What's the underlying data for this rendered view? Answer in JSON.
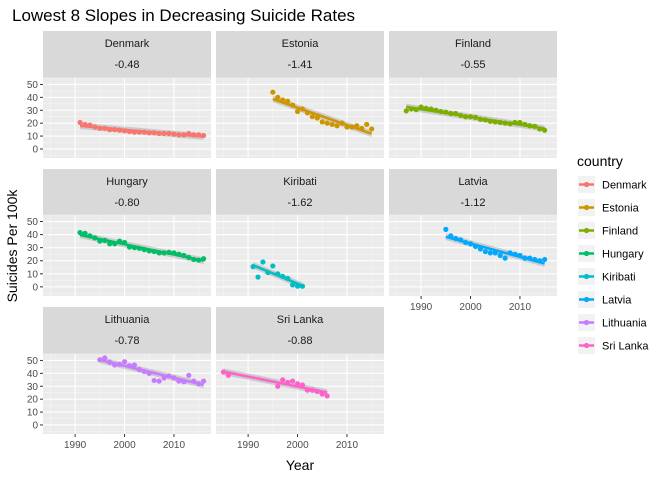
{
  "title": "Lowest 8 Slopes in Decreasing Suicide Rates",
  "chart_data": {
    "type": "scatter",
    "title": "Lowest 8 Slopes in Decreasing Suicide Rates",
    "xlabel": "Year",
    "ylabel": "Suicides Per 100k",
    "xlim": [
      1983.5,
      2017.5
    ],
    "ylim": [
      -7,
      55
    ],
    "xticks": [
      1990,
      2000,
      2010
    ],
    "yticks": [
      0,
      10,
      20,
      30,
      40,
      50
    ],
    "grid": true,
    "legend": {
      "title": "country",
      "placement": "right"
    },
    "panels": [
      {
        "country": "Denmark",
        "slope": "-0.48",
        "color": "#F8766D",
        "x": [
          1991,
          1992,
          1993,
          1994,
          1995,
          1996,
          1997,
          1998,
          1999,
          2000,
          2001,
          2002,
          2003,
          2004,
          2005,
          2006,
          2007,
          2008,
          2009,
          2010,
          2011,
          2012,
          2013,
          2014,
          2015,
          2016
        ],
        "y": [
          20.5,
          19,
          18.5,
          17,
          16,
          16,
          15,
          15,
          14.5,
          14,
          13.5,
          13,
          13,
          13,
          12.5,
          12.5,
          12,
          12,
          12,
          11.5,
          11,
          11,
          12,
          11,
          11,
          10.5
        ]
      },
      {
        "country": "Estonia",
        "slope": "-1.41",
        "color": "#CD9600",
        "x": [
          1995,
          1996,
          1997,
          1998,
          1999,
          2000,
          2001,
          2002,
          2003,
          2004,
          2005,
          2006,
          2007,
          2008,
          2009,
          2010,
          2011,
          2012,
          2013,
          2014,
          2015
        ],
        "y": [
          44,
          40,
          38,
          37,
          34,
          29,
          31,
          28,
          25,
          24,
          21,
          20,
          19,
          18,
          20,
          17,
          17,
          18,
          16,
          19,
          15.5
        ]
      },
      {
        "country": "Finland",
        "slope": "-0.55",
        "color": "#7CAE00",
        "x": [
          1987,
          1988,
          1989,
          1990,
          1991,
          1992,
          1993,
          1994,
          1995,
          1996,
          1997,
          1998,
          1999,
          2000,
          2001,
          2002,
          2003,
          2004,
          2005,
          2006,
          2007,
          2008,
          2009,
          2010,
          2011,
          2012,
          2013,
          2014,
          2015
        ],
        "y": [
          29.5,
          31,
          30.5,
          32.5,
          31.5,
          31,
          30,
          29,
          28.5,
          27.5,
          27.5,
          26,
          25,
          25,
          24.5,
          23,
          22.5,
          21.5,
          21,
          20.5,
          20,
          19.5,
          20.5,
          20.5,
          19,
          18,
          17.5,
          15.5,
          14.5
        ]
      },
      {
        "country": "Hungary",
        "slope": "-0.80",
        "color": "#00BE67",
        "x": [
          1991,
          1992,
          1993,
          1994,
          1995,
          1996,
          1997,
          1998,
          1999,
          2000,
          2001,
          2002,
          2003,
          2004,
          2005,
          2006,
          2007,
          2008,
          2009,
          2010,
          2011,
          2012,
          2013,
          2014,
          2015,
          2016
        ],
        "y": [
          41.5,
          41,
          39,
          37.5,
          35,
          35.5,
          33,
          33,
          35,
          34,
          30.5,
          30,
          29.5,
          28.5,
          27.5,
          27,
          26,
          26,
          26.5,
          26,
          25,
          24,
          22.5,
          21,
          20.5,
          21.5
        ]
      },
      {
        "country": "Kiribati",
        "slope": "-1.62",
        "color": "#00BFC4",
        "x": [
          1991,
          1992,
          1993,
          1994,
          1995,
          1996,
          1997,
          1998,
          1999,
          2000,
          2001
        ],
        "y": [
          15.5,
          7.5,
          19,
          11,
          16,
          10,
          8,
          6.5,
          1.5,
          0.5,
          0.5
        ]
      },
      {
        "country": "Latvia",
        "slope": "-1.12",
        "color": "#00A9FF",
        "x": [
          1995,
          1996,
          1997,
          1998,
          1999,
          2000,
          2001,
          2002,
          2003,
          2004,
          2005,
          2006,
          2007,
          2008,
          2009,
          2010,
          2011,
          2012,
          2013,
          2014,
          2015
        ],
        "y": [
          44,
          39,
          37,
          36,
          34,
          33,
          31,
          29,
          27,
          26,
          26,
          24,
          22,
          26,
          25,
          24,
          22,
          22,
          21,
          20,
          21
        ]
      },
      {
        "country": "Lithuania",
        "slope": "-0.78",
        "color": "#C77CFF",
        "x": [
          1995,
          1996,
          1997,
          1998,
          1999,
          2000,
          2001,
          2002,
          2003,
          2004,
          2005,
          2006,
          2007,
          2008,
          2009,
          2010,
          2011,
          2012,
          2013,
          2014,
          2015,
          2016
        ],
        "y": [
          50.5,
          52,
          48.5,
          46.5,
          47,
          49,
          46,
          46.5,
          43,
          41.5,
          40,
          34.5,
          34,
          36.5,
          38,
          36.5,
          34,
          33.5,
          38.5,
          34,
          32,
          34
        ]
      },
      {
        "country": "Sri Lanka",
        "slope": "-0.88",
        "color": "#FF61CC",
        "x": [
          1985,
          1986,
          1996,
          1997,
          1998,
          1999,
          2000,
          2001,
          2002,
          2003,
          2004,
          2005,
          2006
        ],
        "y": [
          41,
          38.5,
          30,
          35,
          33,
          34,
          32,
          31,
          27,
          27,
          26,
          24,
          22.5
        ]
      }
    ]
  }
}
